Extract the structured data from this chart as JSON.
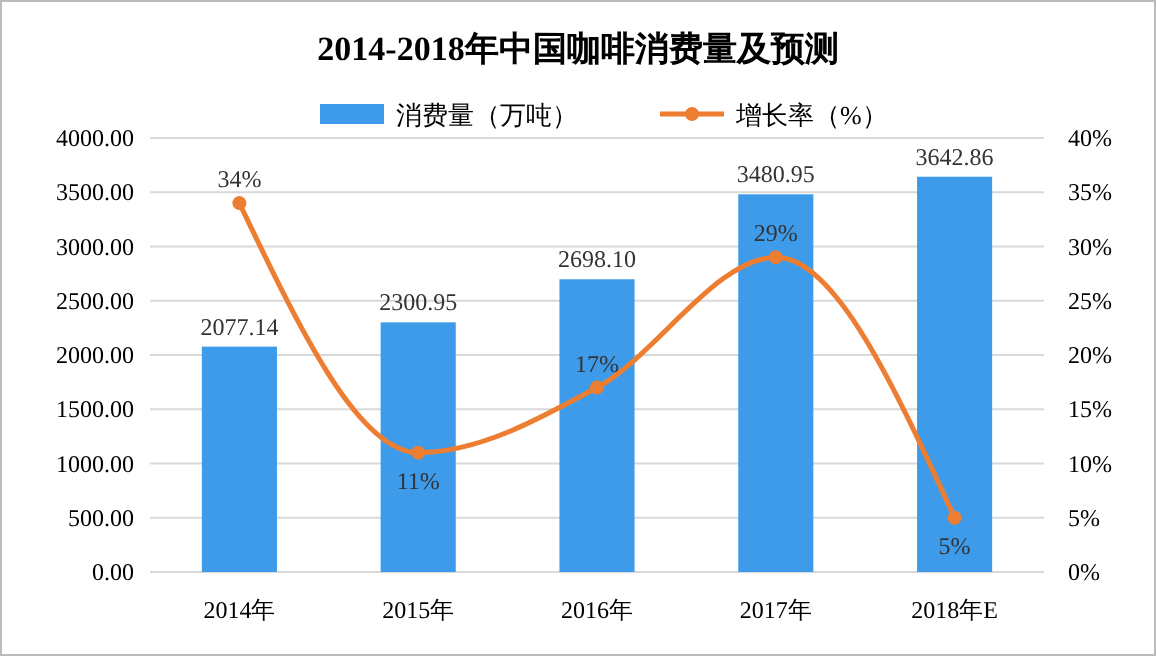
{
  "chart_data": {
    "type": "bar",
    "title": "2014-2018年中国咖啡消费量及预测",
    "categories": [
      "2014年",
      "2015年",
      "2016年",
      "2017年",
      "2018年E"
    ],
    "series": [
      {
        "name": "消费量（万吨）",
        "color": "#3d9be9",
        "values": [
          2077.14,
          2300.95,
          2698.1,
          3480.95,
          3642.86
        ]
      },
      {
        "name": "增长率（%）",
        "type": "line",
        "axis": "y2",
        "color": "#ed7d31",
        "values": [
          34,
          11,
          17,
          29,
          5
        ]
      }
    ],
    "ylim": [
      0,
      4000
    ],
    "yticks": [
      {
        "value": 0,
        "label": "0.00"
      },
      {
        "value": 500,
        "label": "500.00"
      },
      {
        "value": 1000,
        "label": "1000.00"
      },
      {
        "value": 1500,
        "label": "1500.00"
      },
      {
        "value": 2000,
        "label": "2000.00"
      },
      {
        "value": 2500,
        "label": "2500.00"
      },
      {
        "value": 3000,
        "label": "3000.00"
      },
      {
        "value": 3500,
        "label": "3500.00"
      },
      {
        "value": 4000,
        "label": "4000.00"
      }
    ],
    "y2lim": [
      0,
      40
    ],
    "y2ticks": [
      {
        "value": 0,
        "label": "0%"
      },
      {
        "value": 5,
        "label": "5%"
      },
      {
        "value": 10,
        "label": "10%"
      },
      {
        "value": 15,
        "label": "15%"
      },
      {
        "value": 20,
        "label": "20%"
      },
      {
        "value": 25,
        "label": "25%"
      },
      {
        "value": 30,
        "label": "30%"
      },
      {
        "value": 35,
        "label": "35%"
      },
      {
        "value": 40,
        "label": "40%"
      }
    ],
    "value_labels": [
      [
        "2077.14",
        "2300.95",
        "2698.10",
        "3480.95",
        "3642.86"
      ],
      [
        "34%",
        "11%",
        "17%",
        "29%",
        "5%"
      ]
    ],
    "grid": "y",
    "legend": "top",
    "marker": "circle",
    "line_style": "solid"
  }
}
